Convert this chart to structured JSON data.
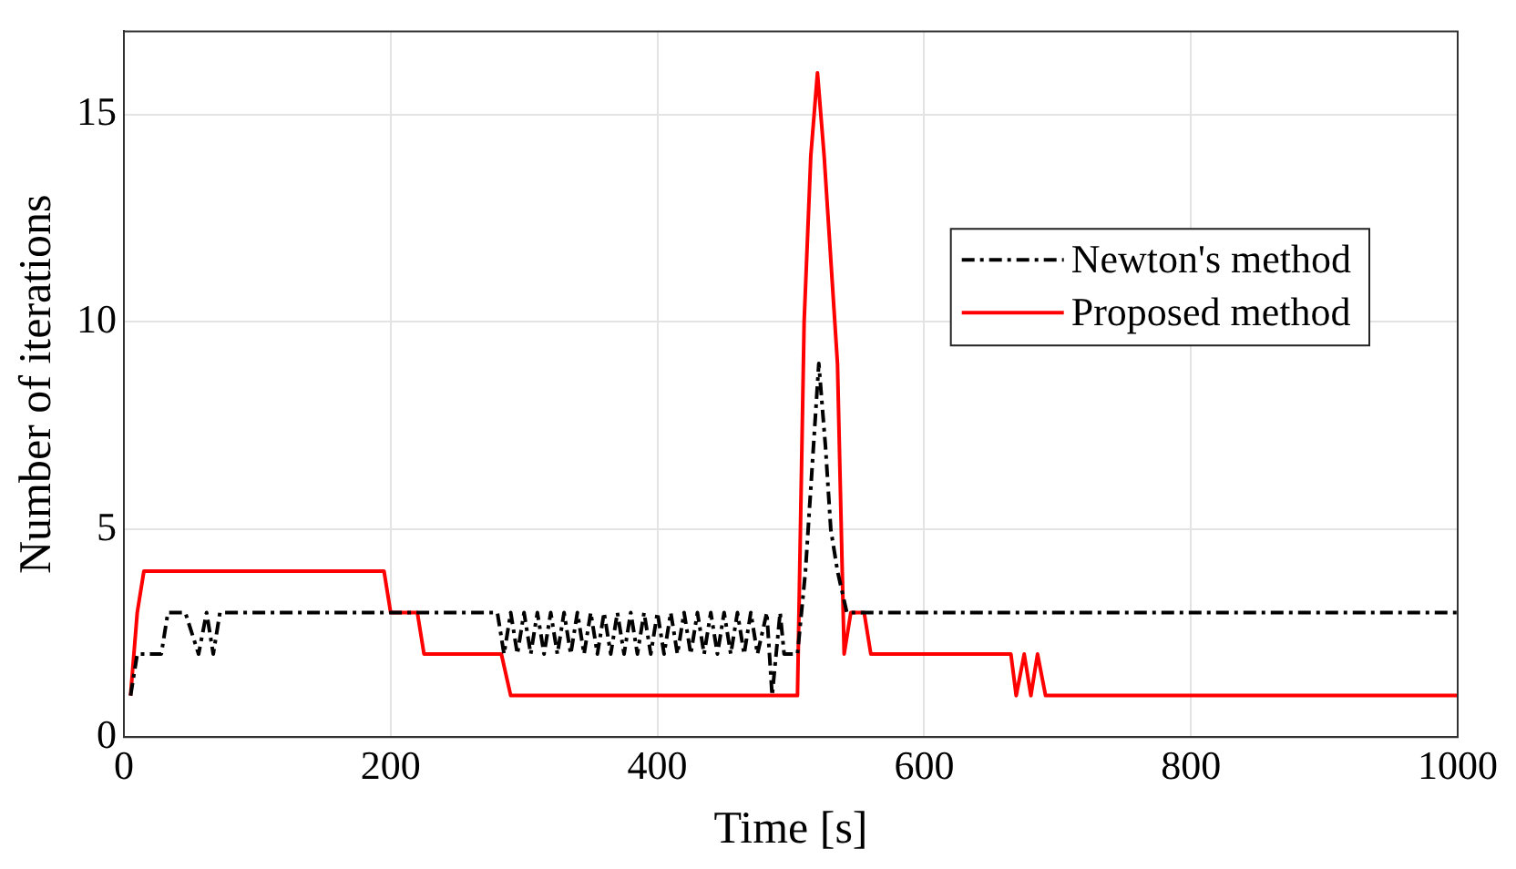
{
  "chart_data": {
    "type": "line",
    "xlabel": "Time [s]",
    "ylabel": "Number of iterations",
    "xlim": [
      0,
      1000
    ],
    "ylim": [
      0,
      17
    ],
    "xticks": [
      0,
      200,
      400,
      600,
      800,
      1000
    ],
    "yticks": [
      0,
      5,
      10,
      15
    ],
    "grid": true,
    "legend": "top right",
    "marker": "none",
    "series": [
      {
        "name": "Newton's method",
        "color": "#000000",
        "line_style": "dashed",
        "x": [
          5,
          10,
          28,
          33,
          46,
          56,
          62,
          67,
          72,
          280,
          285,
          290,
          295,
          300,
          305,
          310,
          315,
          320,
          325,
          330,
          335,
          340,
          345,
          350,
          355,
          360,
          365,
          370,
          375,
          380,
          385,
          390,
          395,
          400,
          405,
          410,
          415,
          420,
          425,
          430,
          435,
          440,
          445,
          450,
          455,
          460,
          465,
          470,
          475,
          482,
          486,
          492,
          495,
          505,
          511,
          516,
          521,
          526,
          530,
          535,
          542,
          1000
        ],
        "values": [
          1,
          2,
          2,
          3,
          3,
          2,
          3,
          2,
          3,
          3,
          2,
          3,
          2,
          3,
          2,
          3,
          2,
          3,
          2,
          3,
          2,
          3,
          2,
          3,
          2,
          3,
          2,
          3,
          2,
          3,
          2,
          3,
          2,
          3,
          2,
          3,
          2,
          3,
          2,
          3,
          2,
          3,
          2,
          3,
          2,
          3,
          2,
          3,
          2,
          3,
          1,
          3,
          2,
          2,
          4,
          6.5,
          9,
          7,
          5,
          4,
          3,
          3
        ]
      },
      {
        "name": "Proposed method",
        "color": "#ff0000",
        "line_style": "solid",
        "x": [
          5,
          10,
          15,
          195,
          200,
          220,
          225,
          283,
          290,
          505,
          510,
          515,
          520,
          525,
          530,
          535,
          540,
          545,
          555,
          560,
          665,
          669,
          675,
          680,
          685,
          691,
          1000
        ],
        "values": [
          1,
          3,
          4,
          4,
          3,
          3,
          2,
          2,
          1,
          1,
          10,
          14,
          16,
          14,
          11.5,
          9,
          2,
          3,
          3,
          2,
          2,
          1,
          2,
          1,
          2,
          1,
          1
        ]
      }
    ]
  }
}
